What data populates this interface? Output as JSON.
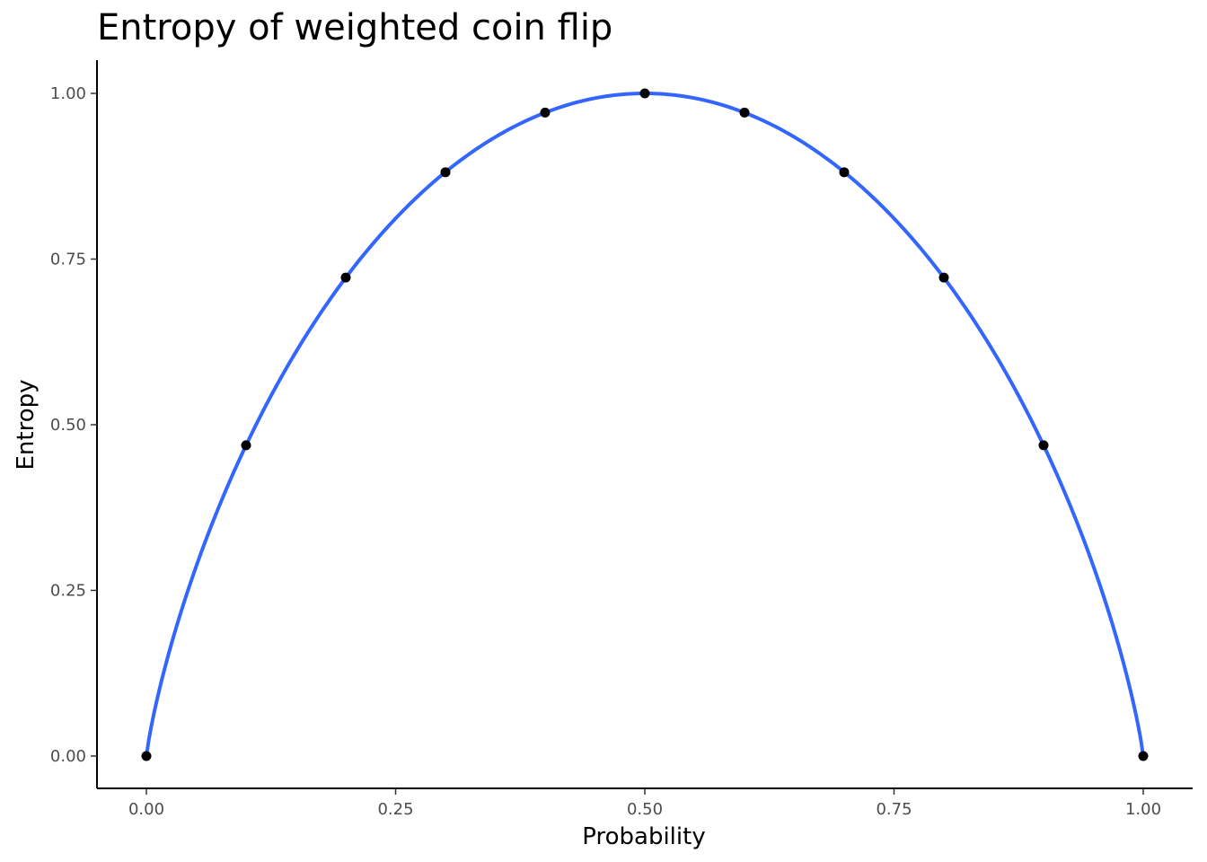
{
  "chart_data": {
    "type": "scatter",
    "title": "Entropy of weighted coin flip",
    "xlabel": "Probability",
    "ylabel": "Entropy",
    "xlim": [
      -0.05,
      1.05
    ],
    "ylim": [
      -0.05,
      1.05
    ],
    "x_ticks": [
      0,
      0.25,
      0.5,
      0.75,
      1
    ],
    "x_tick_labels": [
      "0.00",
      "0.25",
      "0.50",
      "0.75",
      "1.00"
    ],
    "y_ticks": [
      0,
      0.25,
      0.5,
      0.75,
      1
    ],
    "y_tick_labels": [
      "0.00",
      "0.25",
      "0.50",
      "0.75",
      "1.00"
    ],
    "grid": false,
    "points": {
      "x": [
        0,
        0.1,
        0.2,
        0.3,
        0.4,
        0.5,
        0.6,
        0.7,
        0.8,
        0.9,
        1
      ],
      "y": [
        0,
        0.469,
        0.722,
        0.881,
        0.971,
        1.0,
        0.971,
        0.881,
        0.722,
        0.469,
        0
      ]
    },
    "line": {
      "type": "smooth",
      "color": "#3366ff"
    },
    "point_color": "#000000"
  }
}
